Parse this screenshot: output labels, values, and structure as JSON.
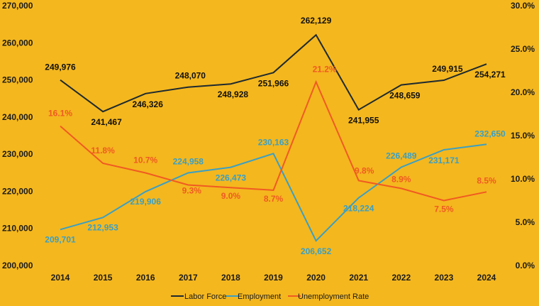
{
  "chart_data": {
    "type": "line",
    "title": "",
    "x": [
      "2014",
      "2015",
      "2016",
      "2017",
      "2018",
      "2019",
      "2020",
      "2021",
      "2022",
      "2023",
      "2024"
    ],
    "series": [
      {
        "name": "Labor Force",
        "axis": "left",
        "color": "#1E2A30",
        "values": [
          249976,
          241467,
          246326,
          248070,
          248928,
          251966,
          262129,
          241955,
          248659,
          249915,
          254271
        ],
        "labels": [
          "249,976",
          "241,467",
          "246,326",
          "248,070",
          "248,928",
          "251,966",
          "262,129",
          "241,955",
          "248,659",
          "249,915",
          "254,271"
        ]
      },
      {
        "name": "Employment",
        "axis": "left",
        "color": "#3A9FC4",
        "values": [
          209701,
          212953,
          219906,
          224958,
          226473,
          230163,
          206652,
          218224,
          226489,
          231171,
          232650
        ],
        "labels": [
          "209,701",
          "212,953",
          "219,906",
          "224,958",
          "226,473",
          "230,163",
          "206,652",
          "218,224",
          "226,489",
          "231,171",
          "232,650"
        ]
      },
      {
        "name": "Unemployment Rate",
        "axis": "right",
        "color": "#F05A22",
        "values": [
          16.1,
          11.8,
          10.7,
          9.3,
          9.0,
          8.7,
          21.2,
          9.8,
          8.9,
          7.5,
          8.5
        ],
        "labels": [
          "16.1%",
          "11.8%",
          "10.7%",
          "9.3%",
          "9.0%",
          "8.7%",
          "21.2%",
          "9.8%",
          "8.9%",
          "7.5%",
          "8.5%"
        ]
      }
    ],
    "y_left": {
      "range": [
        200000,
        270000
      ],
      "ticks": [
        200000,
        210000,
        220000,
        230000,
        240000,
        250000,
        260000,
        270000
      ],
      "tick_labels": [
        "200,000",
        "210,000",
        "220,000",
        "230,000",
        "240,000",
        "250,000",
        "260,000",
        "270,000"
      ]
    },
    "y_right": {
      "range": [
        0,
        30
      ],
      "ticks": [
        0,
        5,
        10,
        15,
        20,
        25,
        30
      ],
      "tick_labels": [
        "0.0%",
        "5.0%",
        "10.0%",
        "15.0%",
        "20.0%",
        "25.0%",
        "30.0%"
      ]
    },
    "grid": false,
    "legend": {
      "position": "bottom",
      "entries": [
        "Labor Force",
        "Employment",
        "Unemployment Rate"
      ]
    },
    "colors": {
      "background": "#F4B71E",
      "tick_text": "#1b1b1b"
    }
  }
}
